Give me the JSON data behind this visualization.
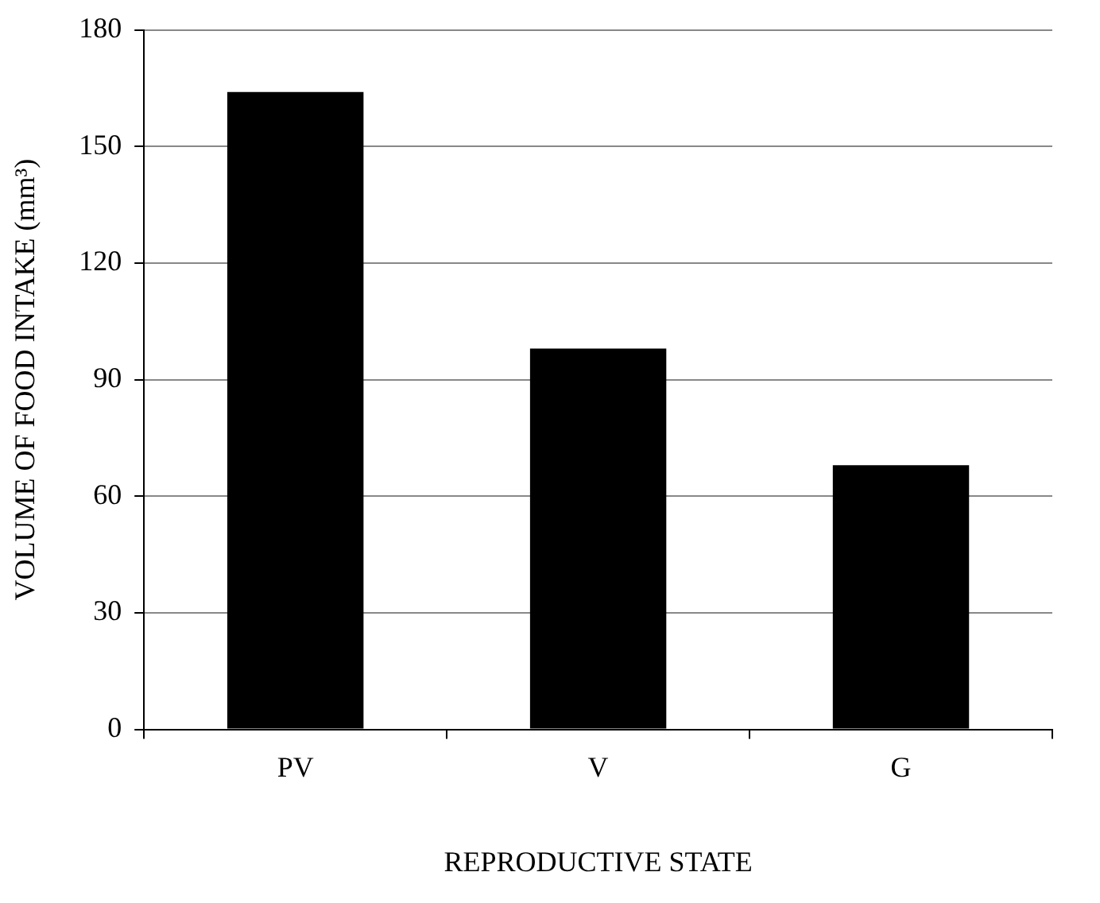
{
  "chart_data": {
    "type": "bar",
    "xlabel": "REPRODUCTIVE STATE",
    "ylabel": "VOLUME OF FOOD INTAKE (mm³)",
    "categories": [
      "PV",
      "V",
      "G"
    ],
    "values": [
      164,
      98,
      68
    ],
    "color": "#000000",
    "ylim": [
      0,
      180
    ],
    "yticks": [
      0,
      30,
      60,
      90,
      120,
      150,
      180
    ],
    "grid": "y"
  }
}
